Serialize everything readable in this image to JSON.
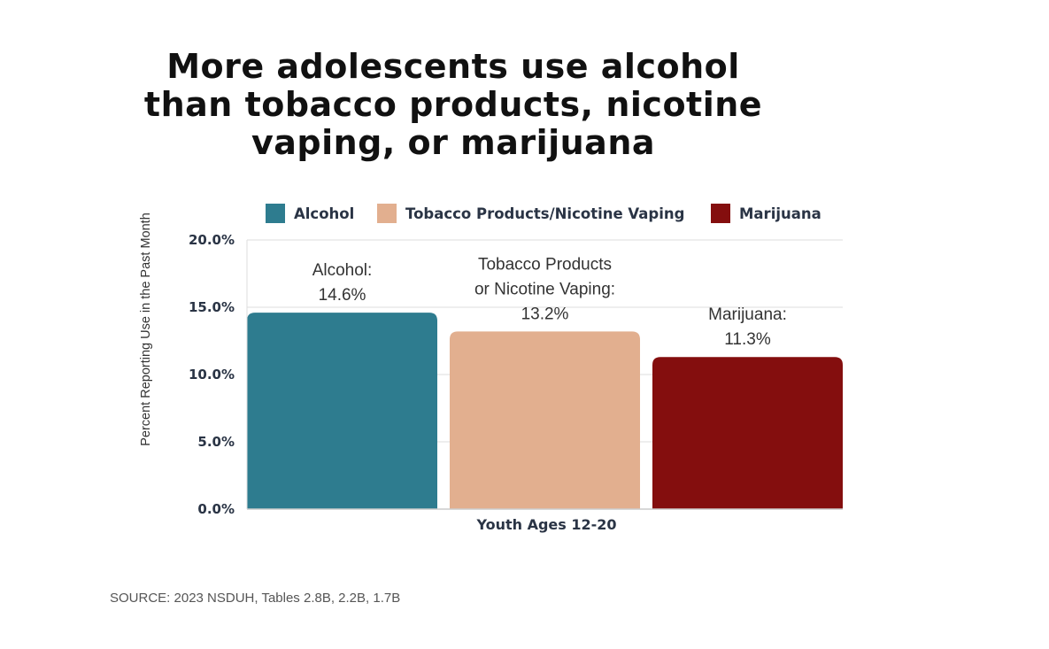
{
  "chart_data": {
    "type": "bar",
    "title": "More adolescents use alcohol than tobacco products, nicotine vaping, or marijuana",
    "ylabel": "Percent Reporting Use in the Past Month",
    "xlabel": "Youth Ages 12-20",
    "categories": [
      "Youth Ages 12-20"
    ],
    "ylim": [
      0,
      20
    ],
    "yticks": [
      "0.0%",
      "5.0%",
      "10.0%",
      "15.0%",
      "20.0%"
    ],
    "grid": true,
    "legend_position": "top",
    "series": [
      {
        "name": "Alcohol",
        "values": [
          14.6
        ],
        "color": "#2e7c8f",
        "label_lines": [
          "Alcohol:",
          "14.6%"
        ]
      },
      {
        "name": "Tobacco Products/Nicotine Vaping",
        "values": [
          13.2
        ],
        "color": "#e2af8f",
        "label_lines": [
          "Tobacco Products",
          "or Nicotine Vaping:",
          "13.2%"
        ]
      },
      {
        "name": "Marijuana",
        "values": [
          11.3
        ],
        "color": "#840e0e",
        "label_lines": [
          "Marijuana:",
          "11.3%"
        ]
      }
    ]
  },
  "source": "SOURCE: 2023 NSDUH, Tables 2.8B, 2.2B, 1.7B"
}
